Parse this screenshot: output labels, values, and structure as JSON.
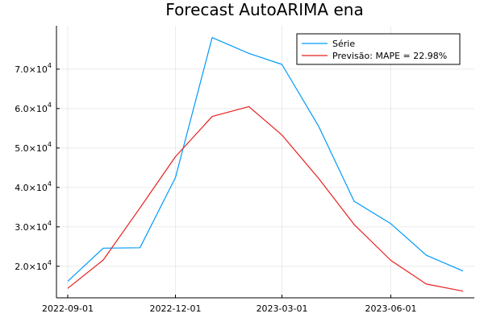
{
  "chart_data": {
    "type": "line",
    "title": "Forecast AutoARIMA ena",
    "xlabel": "",
    "ylabel": "",
    "x": [
      "2022-09-01",
      "2022-10-01",
      "2022-11-01",
      "2022-12-01",
      "2023-01-01",
      "2023-02-01",
      "2023-03-01",
      "2023-04-01",
      "2023-05-01",
      "2023-06-01",
      "2023-07-01",
      "2023-08-01"
    ],
    "x_ticks": [
      "2022-09-01",
      "2022-12-01",
      "2023-03-01",
      "2023-06-01"
    ],
    "xlim": [
      "2022-09-01",
      "2023-08-01"
    ],
    "y_ticks": [
      {
        "value": 20000,
        "mantissa": "2.0",
        "exponent": "4"
      },
      {
        "value": 30000,
        "mantissa": "3.0",
        "exponent": "4"
      },
      {
        "value": 40000,
        "mantissa": "4.0",
        "exponent": "4"
      },
      {
        "value": 50000,
        "mantissa": "5.0",
        "exponent": "4"
      },
      {
        "value": 60000,
        "mantissa": "6.0",
        "exponent": "4"
      },
      {
        "value": 70000,
        "mantissa": "7.0",
        "exponent": "4"
      }
    ],
    "ylim": [
      12000,
      81000
    ],
    "grid": true,
    "legend_position": "top-right",
    "series": [
      {
        "name": "Série",
        "color": "#009af9",
        "values": [
          16200,
          24600,
          24700,
          42500,
          78000,
          74000,
          71200,
          55500,
          36500,
          30800,
          22800,
          18800
        ]
      },
      {
        "name": "Previsão: MAPE = 22.98%",
        "color": "#e8201e",
        "values": [
          14400,
          21600,
          34800,
          47800,
          58000,
          60500,
          53300,
          42300,
          30600,
          21500,
          15500,
          13700
        ]
      }
    ]
  }
}
